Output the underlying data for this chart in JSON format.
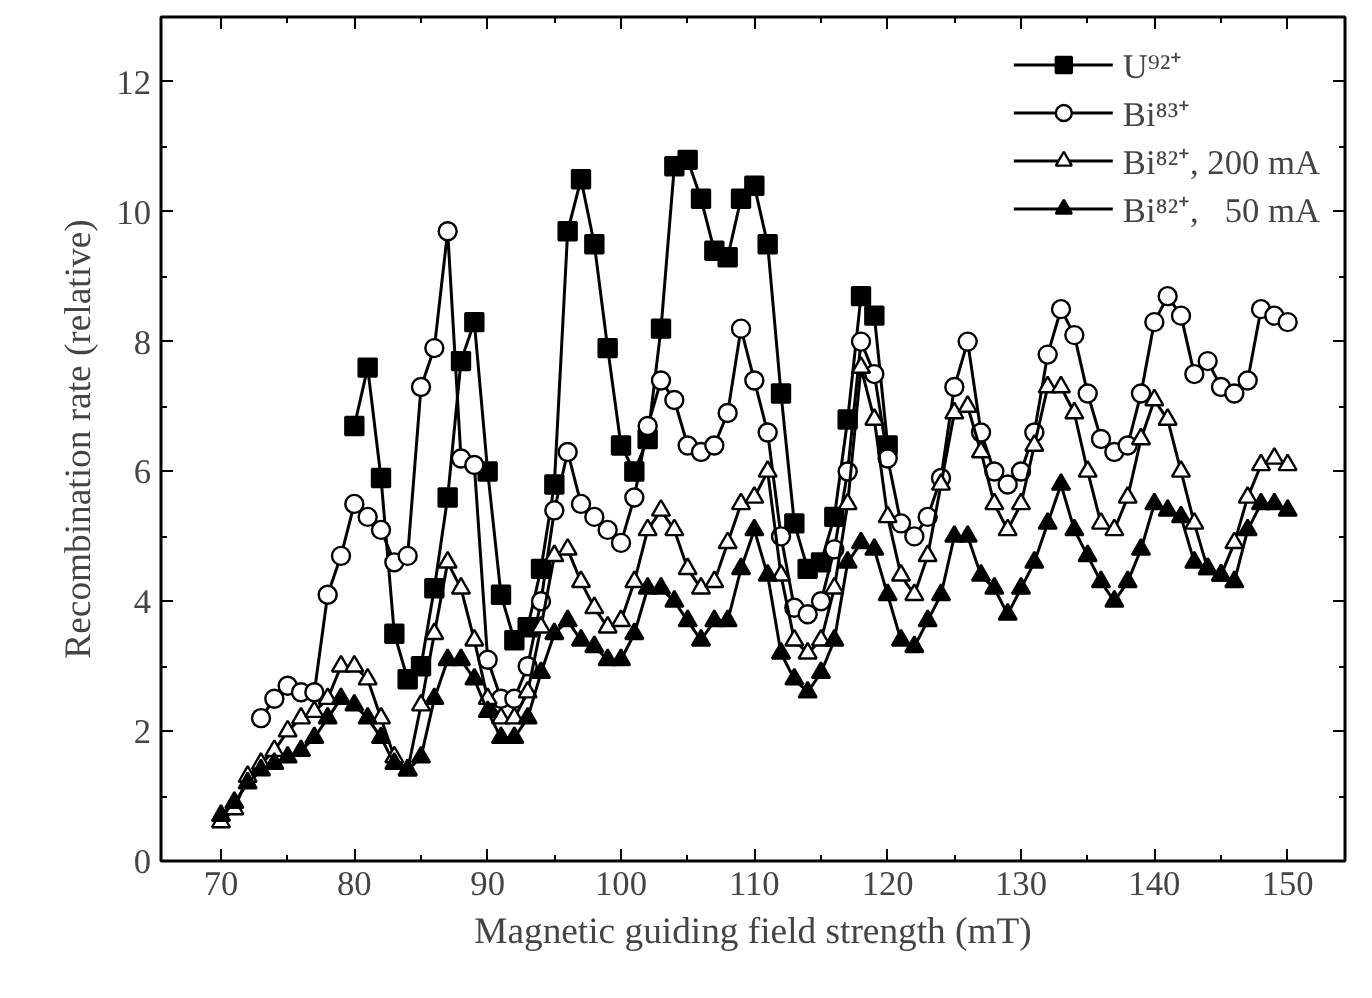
{
  "chart_data": {
    "type": "line",
    "xlabel": "Magnetic guiding field strength (mT)",
    "ylabel": "Recombination rate (relative)",
    "xlim": [
      65.5,
      154.3
    ],
    "ylim": [
      0,
      13
    ],
    "xticks": [
      70,
      80,
      90,
      100,
      110,
      120,
      130,
      140,
      150
    ],
    "yticks": [
      0,
      2,
      4,
      6,
      8,
      10,
      12
    ],
    "grid": false,
    "legend": "top right",
    "line_style": "solid",
    "series": [
      {
        "name": "U⁹²⁺",
        "color": "#000000",
        "marker": "square",
        "x": [
          80,
          81,
          82,
          83,
          84,
          85,
          86,
          87,
          88,
          89,
          90,
          91,
          92,
          93,
          94,
          95,
          96,
          97,
          98,
          99,
          100,
          101,
          102,
          103,
          104,
          105,
          106,
          107,
          108,
          109,
          110,
          111,
          112,
          113,
          114,
          115,
          116,
          117,
          118,
          119,
          120
        ],
        "values": [
          6.7,
          7.6,
          5.9,
          3.5,
          2.8,
          3.0,
          4.2,
          5.6,
          7.7,
          8.3,
          6.0,
          4.1,
          3.4,
          3.6,
          4.5,
          5.8,
          9.7,
          10.5,
          9.5,
          7.9,
          6.4,
          6.0,
          6.5,
          8.2,
          10.7,
          10.8,
          10.2,
          9.4,
          9.3,
          10.2,
          10.4,
          9.5,
          7.2,
          5.2,
          4.5,
          4.6,
          5.3,
          6.8,
          8.7,
          8.4,
          6.4
        ]
      },
      {
        "name": "Bi⁸³⁺",
        "color": "#000000",
        "marker": "circle",
        "x": [
          73,
          74,
          75,
          76,
          77,
          78,
          79,
          80,
          81,
          82,
          83,
          84,
          85,
          86,
          87,
          88,
          89,
          90,
          91,
          92,
          93,
          94,
          95,
          96,
          97,
          98,
          99,
          100,
          101,
          102,
          103,
          104,
          105,
          106,
          107,
          108,
          109,
          110,
          111,
          112,
          113,
          114,
          115,
          116,
          117,
          118,
          119,
          120,
          121,
          122,
          123,
          124,
          125,
          126,
          127,
          128,
          129,
          130,
          131,
          132,
          133,
          134,
          135,
          136,
          137,
          138,
          139,
          140,
          141,
          142,
          143,
          144,
          145,
          146,
          147,
          148,
          149,
          150
        ],
        "values": [
          2.2,
          2.5,
          2.7,
          2.6,
          2.6,
          4.1,
          4.7,
          5.5,
          5.3,
          5.1,
          4.6,
          4.7,
          7.3,
          7.9,
          9.7,
          6.2,
          6.1,
          3.1,
          2.5,
          2.5,
          3.0,
          4.0,
          5.4,
          6.3,
          5.5,
          5.3,
          5.1,
          4.9,
          5.6,
          6.7,
          7.4,
          7.1,
          6.4,
          6.3,
          6.4,
          6.9,
          8.2,
          7.4,
          6.6,
          5.0,
          3.9,
          3.8,
          4.0,
          4.8,
          6.0,
          8.0,
          7.5,
          6.2,
          5.2,
          5.0,
          5.3,
          5.9,
          7.3,
          8.0,
          6.6,
          6.0,
          5.8,
          6.0,
          6.6,
          7.8,
          8.5,
          8.1,
          7.2,
          6.5,
          6.3,
          6.4,
          7.2,
          8.3,
          8.7,
          8.4,
          7.5,
          7.7,
          7.3,
          7.2,
          7.4,
          8.5,
          8.4,
          8.3
        ]
      },
      {
        "name": "Bi⁸²⁺, 200 mA",
        "color": "#000000",
        "marker": "triangle",
        "x": [
          70,
          71,
          72,
          73,
          74,
          75,
          76,
          77,
          78,
          79,
          80,
          81,
          82,
          83,
          84,
          85,
          86,
          87,
          88,
          89,
          90,
          91,
          92,
          93,
          94,
          95,
          96,
          97,
          98,
          99,
          100,
          101,
          102,
          103,
          104,
          105,
          106,
          107,
          108,
          109,
          110,
          111,
          112,
          113,
          114,
          115,
          116,
          117,
          118,
          119,
          120,
          121,
          122,
          123,
          124,
          125,
          126,
          127,
          128,
          129,
          130,
          131,
          132,
          133,
          134,
          135,
          136,
          137,
          138,
          139,
          140,
          141,
          142,
          143,
          144,
          145,
          146,
          147,
          148,
          149,
          150
        ],
        "values": [
          0.6,
          0.8,
          1.3,
          1.5,
          1.7,
          2.0,
          2.2,
          2.3,
          2.5,
          3.0,
          3.0,
          2.8,
          2.2,
          1.6,
          1.4,
          2.4,
          3.5,
          4.6,
          4.2,
          3.4,
          2.5,
          2.2,
          2.2,
          2.6,
          3.6,
          4.7,
          4.8,
          4.3,
          3.9,
          3.6,
          3.7,
          4.3,
          5.1,
          5.4,
          5.1,
          4.5,
          4.2,
          4.3,
          4.9,
          5.5,
          5.6,
          6.0,
          4.4,
          3.4,
          3.2,
          3.4,
          4.2,
          5.5,
          7.6,
          6.8,
          5.3,
          4.4,
          4.1,
          4.7,
          5.8,
          6.9,
          7.0,
          6.3,
          5.5,
          5.1,
          5.5,
          6.4,
          7.3,
          7.3,
          6.9,
          6.0,
          5.2,
          5.1,
          5.6,
          6.5,
          7.1,
          6.8,
          6.0,
          5.2,
          4.5,
          4.4,
          4.9,
          5.6,
          6.1,
          6.2,
          6.1
        ]
      },
      {
        "name": "Bi⁸²⁺,   50 mA",
        "color": "#000000",
        "marker": "triangle",
        "x": [
          70,
          71,
          72,
          73,
          74,
          75,
          76,
          77,
          78,
          79,
          80,
          81,
          82,
          83,
          84,
          85,
          86,
          87,
          88,
          89,
          90,
          91,
          92,
          93,
          94,
          95,
          96,
          97,
          98,
          99,
          100,
          101,
          102,
          103,
          104,
          105,
          106,
          107,
          108,
          109,
          110,
          111,
          112,
          113,
          114,
          115,
          116,
          117,
          118,
          119,
          120,
          121,
          122,
          123,
          124,
          125,
          126,
          127,
          128,
          129,
          130,
          131,
          132,
          133,
          134,
          135,
          136,
          137,
          138,
          139,
          140,
          141,
          142,
          143,
          144,
          145,
          146,
          147,
          148,
          149,
          150
        ],
        "values": [
          0.7,
          0.9,
          1.2,
          1.4,
          1.5,
          1.6,
          1.7,
          1.9,
          2.2,
          2.5,
          2.4,
          2.2,
          1.9,
          1.5,
          1.4,
          1.6,
          2.5,
          3.1,
          3.1,
          2.8,
          2.3,
          1.9,
          1.9,
          2.2,
          2.9,
          3.5,
          3.7,
          3.4,
          3.3,
          3.1,
          3.1,
          3.5,
          4.2,
          4.2,
          4.0,
          3.7,
          3.4,
          3.7,
          3.7,
          4.5,
          5.1,
          4.4,
          3.2,
          2.8,
          2.6,
          2.9,
          3.4,
          4.6,
          4.9,
          4.8,
          4.1,
          3.4,
          3.3,
          3.7,
          4.1,
          5.0,
          5.0,
          4.4,
          4.2,
          3.8,
          4.2,
          4.6,
          5.2,
          5.8,
          5.1,
          4.7,
          4.3,
          4.0,
          4.3,
          4.8,
          5.5,
          5.4,
          5.3,
          4.6,
          4.5,
          4.4,
          4.3,
          5.1,
          5.5,
          5.5,
          5.4
        ]
      }
    ]
  }
}
